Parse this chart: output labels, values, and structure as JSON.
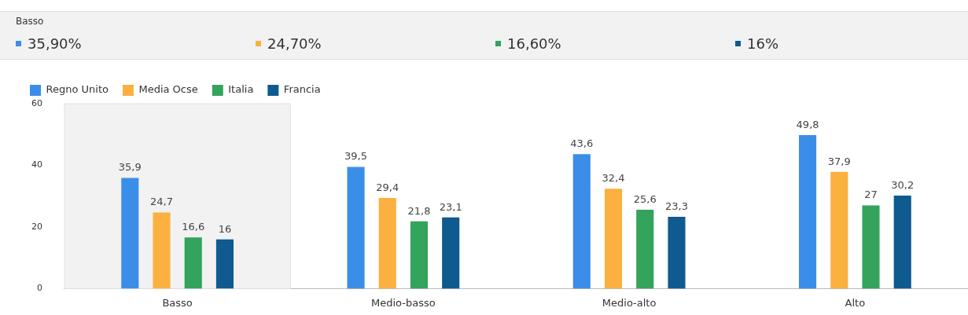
{
  "chart_data": {
    "type": "bar",
    "categories": [
      "Basso",
      "Medio-basso",
      "Medio-alto",
      "Alto"
    ],
    "series": [
      {
        "name": "Regno Unito",
        "color": "#3b8ee8",
        "values": [
          35.9,
          39.5,
          43.6,
          49.8
        ],
        "value_labels": [
          "35,9",
          "39,5",
          "43,6",
          "49,8"
        ]
      },
      {
        "name": "Media Ocse",
        "color": "#fbb040",
        "values": [
          24.7,
          29.4,
          32.4,
          37.9
        ],
        "value_labels": [
          "24,7",
          "29,4",
          "32,4",
          "37,9"
        ]
      },
      {
        "name": "Italia",
        "color": "#34a35c",
        "values": [
          16.6,
          21.8,
          25.6,
          27
        ],
        "value_labels": [
          "16,6",
          "21,8",
          "25,6",
          "27"
        ]
      },
      {
        "name": "Francia",
        "color": "#0f5a8e",
        "values": [
          16,
          23.1,
          23.3,
          30.2
        ],
        "value_labels": [
          "16",
          "23,1",
          "23,3",
          "30,2"
        ]
      }
    ],
    "ylim": [
      0,
      60
    ],
    "yticks": [
      0,
      20,
      40,
      60
    ],
    "grid": false,
    "legend": "top left",
    "bands": [
      {
        "axis": "x",
        "from": "Basso",
        "to": "Basso",
        "color": "#f2f2f2"
      }
    ],
    "annotations": [
      "Basso",
      "35,90%",
      "24,70%",
      "16,60%",
      "16%"
    ]
  }
}
